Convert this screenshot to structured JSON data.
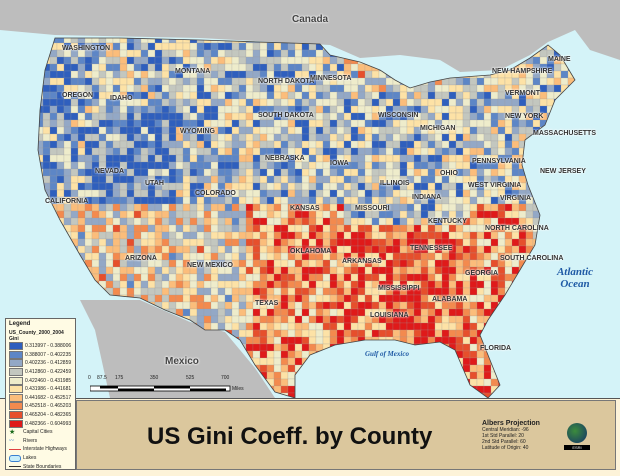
{
  "title": "US Gini Coeff. by County",
  "countries": {
    "canada": "Canada",
    "mexico": "Mexico"
  },
  "water": {
    "atlantic": "Atlantic Ocean",
    "gulf": "Gulf of Mexico"
  },
  "states": [
    "WASHINGTON",
    "OREGON",
    "IDAHO",
    "MONTANA",
    "WYOMING",
    "NEVADA",
    "UTAH",
    "CALIFORNIA",
    "ARIZONA",
    "COLORADO",
    "NEW MEXICO",
    "NORTH DAKOTA",
    "SOUTH DAKOTA",
    "NEBRASKA",
    "KANSAS",
    "OKLAHOMA",
    "TEXAS",
    "MINNESOTA",
    "IOWA",
    "MISSOURI",
    "ARKANSAS",
    "LOUISIANA",
    "WISCONSIN",
    "ILLINOIS",
    "MICHIGAN",
    "INDIANA",
    "OHIO",
    "KENTUCKY",
    "TENNESSEE",
    "MISSISSIPPI",
    "ALABAMA",
    "GEORGIA",
    "FLORIDA",
    "SOUTH CAROLINA",
    "NORTH CAROLINA",
    "VIRGINIA",
    "WEST VIRGINIA",
    "PENNSYLVANIA",
    "NEW YORK",
    "NEW JERSEY",
    "VERMONT",
    "NEW HAMPSHIRE",
    "MAINE",
    "MASSACHUSETTS"
  ],
  "legend": {
    "heading": "Legend",
    "layer": "US_County_2000_2004",
    "field": "Gini",
    "classes": [
      {
        "range": "0.313997 - 0.388006",
        "color": "#2f5fbd"
      },
      {
        "range": "0.388007 - 0.402235",
        "color": "#5d86c6"
      },
      {
        "range": "0.402236 - 0.412859",
        "color": "#93a8c6"
      },
      {
        "range": "0.412860 - 0.422459",
        "color": "#c3c7bf"
      },
      {
        "range": "0.422460 - 0.431985",
        "color": "#eeeccb"
      },
      {
        "range": "0.431986 - 0.441681",
        "color": "#fde2a6"
      },
      {
        "range": "0.441682 - 0.452517",
        "color": "#fbbd7b"
      },
      {
        "range": "0.452518 - 0.465203",
        "color": "#f38a4e"
      },
      {
        "range": "0.465204 - 0.482365",
        "color": "#e64f2c"
      },
      {
        "range": "0.482366 - 0.604993",
        "color": "#df1a1a"
      }
    ],
    "symbols": [
      "Capital Cities",
      "Rivers",
      "Interstate Highways",
      "Lakes",
      "State Boundaries"
    ]
  },
  "scale": {
    "ticks": [
      "0",
      "87.5",
      "175",
      "350",
      "525",
      "700"
    ],
    "unit": "Miles"
  },
  "projection": {
    "name": "Albers Projection",
    "lines": [
      "Central Meridian: -96",
      "1st Std Parallel: 20",
      "2nd Std Parallel: 60",
      "Latitude of Origin: 40"
    ]
  },
  "logo": "ESRI"
}
